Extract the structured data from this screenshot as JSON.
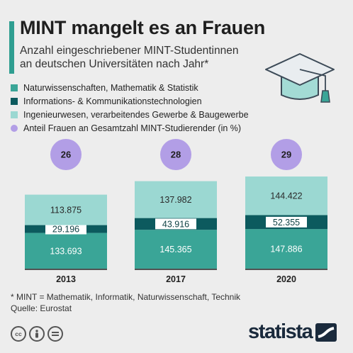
{
  "header": {
    "title": "MINT mangelt es an Frauen",
    "subtitle": "Anzahl eingeschriebener MINT-Studentinnen an deutschen Universitäten nach Jahr*"
  },
  "colors": {
    "accent": "#2f9e91",
    "naturwissenschaften": "#3aa597",
    "ikt": "#0c5a5e",
    "ingenieurwesen": "#9bd8d2",
    "anteil": "#b29ee6"
  },
  "icons": {
    "header": "graduation-cap-icon",
    "license": [
      "cc-icon",
      "by-icon",
      "nd-icon"
    ],
    "brand": "statista-logo"
  },
  "chart_data": {
    "type": "bar",
    "stacked": true,
    "categories": [
      "2013",
      "2017",
      "2020"
    ],
    "series": [
      {
        "name": "Naturwissenschaften, Mathematik & Statistik",
        "values": [
          133693,
          145365,
          147886
        ],
        "labels": [
          "133.693",
          "145.365",
          "147.886"
        ],
        "color": "#3aa597"
      },
      {
        "name": "Informations- & Kommunikationstechnologien",
        "values": [
          29196,
          43916,
          52355
        ],
        "labels": [
          "29.196",
          "43.916",
          "52.355"
        ],
        "color": "#0c5a5e"
      },
      {
        "name": "Ingenieurwesen, verarbeitendes Gewerbe & Baugewerbe",
        "values": [
          113875,
          137982,
          144422
        ],
        "labels": [
          "113.875",
          "137.982",
          "144.422"
        ],
        "color": "#9bd8d2"
      }
    ],
    "share": {
      "name": "Anteil Frauen an Gesamtzahl MINT-Studierender (in %)",
      "values": [
        26,
        28,
        29
      ],
      "color": "#b29ee6"
    },
    "ylim": [
      0,
      344663
    ],
    "grid": false,
    "legend_position": "top-left"
  },
  "footer": {
    "note": "* MINT = Mathematik, Informatik, Naturwissenschaft, Technik",
    "source": "Quelle: Eurostat",
    "logo_text": "statista"
  }
}
